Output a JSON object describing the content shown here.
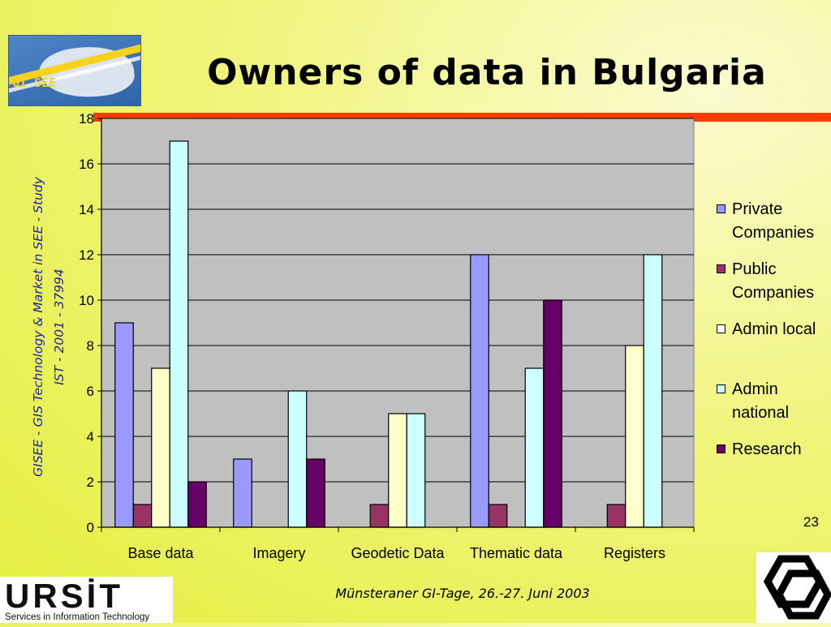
{
  "header": {
    "logo_text": "GI SEE",
    "title": "Owners of data in Bulgaria"
  },
  "sidebar": {
    "line1": "GISEE - GIS Technology & Market in SEE - Study",
    "line2": "IST - 2001 - 37994"
  },
  "chart_data": {
    "type": "bar",
    "title": "",
    "xlabel": "",
    "ylabel": "",
    "ylim": [
      0,
      18
    ],
    "yticks": [
      0,
      2,
      4,
      6,
      8,
      10,
      12,
      14,
      16,
      18
    ],
    "grid": true,
    "legend_position": "right",
    "categories": [
      "Base data",
      "Imagery",
      "Geodetic Data",
      "Thematic data",
      "Registers"
    ],
    "series": [
      {
        "name": "Private Companies",
        "color": "#9999ff",
        "values": [
          9,
          3,
          0,
          12,
          0
        ]
      },
      {
        "name": "Public Companies",
        "color": "#993366",
        "values": [
          1,
          0,
          1,
          1,
          1
        ]
      },
      {
        "name": "Admin local",
        "color": "#ffffcc",
        "values": [
          7,
          0,
          5,
          0,
          8
        ]
      },
      {
        "name": "Admin national",
        "color": "#ccffff",
        "values": [
          17,
          6,
          5,
          7,
          12
        ]
      },
      {
        "name": "Research",
        "color": "#660066",
        "values": [
          2,
          3,
          0,
          10,
          0
        ]
      }
    ]
  },
  "legend": {
    "items": [
      {
        "line1": "Private",
        "line2": "Companies",
        "color": "#9999ff"
      },
      {
        "line1": "Public",
        "line2": "Companies",
        "color": "#993366"
      },
      {
        "line1": "Admin local",
        "line2": "",
        "color": "#ffffff"
      },
      {
        "line1": "Admin",
        "line2": "national",
        "color": "#ccffff"
      },
      {
        "line1": "Research",
        "line2": "",
        "color": "#660066"
      }
    ]
  },
  "page_number": "23",
  "footer": {
    "text": "Münsteraner GI-Tage, 26.-27. Juni 2003"
  },
  "ursit": {
    "word": "URSİT",
    "tagline": "Services in Information Technology"
  }
}
